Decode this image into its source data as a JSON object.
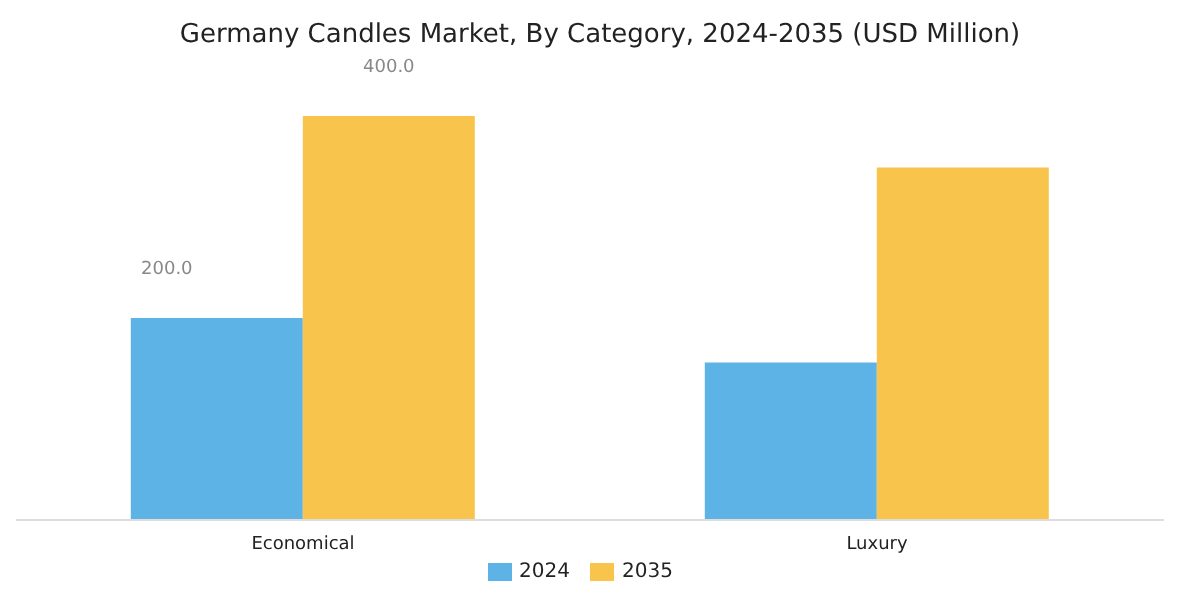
{
  "chart_data": {
    "type": "bar",
    "title": "Germany Candles Market, By Category, 2024-2035 (USD Million)",
    "categories": [
      "Economical",
      "Luxury"
    ],
    "series": [
      {
        "name": "2024",
        "color": "#5db3e6",
        "values": [
          200,
          156
        ],
        "value_labels": [
          "200.0",
          null
        ]
      },
      {
        "name": "2035",
        "color": "#f8c44c",
        "values": [
          400,
          349
        ],
        "value_labels": [
          "400.0",
          null
        ]
      }
    ],
    "tick_labels": "x",
    "grid": false,
    "legend": "bottom"
  }
}
